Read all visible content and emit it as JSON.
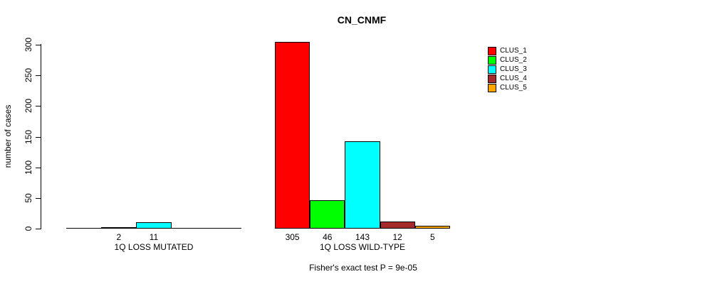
{
  "chart_data": {
    "type": "bar",
    "title": "CN_CNMF",
    "ylabel": "number of cases",
    "xlabel": "",
    "ylim": [
      0,
      300
    ],
    "y_ticks": [
      0,
      50,
      100,
      150,
      200,
      250,
      300
    ],
    "grid": false,
    "legend_position": "right-outside",
    "categories": [
      "1Q LOSS MUTATED",
      "1Q LOSS WILD-TYPE"
    ],
    "series": [
      {
        "name": "CLUS_1",
        "color": "#FF0000",
        "values": [
          0,
          305
        ]
      },
      {
        "name": "CLUS_2",
        "color": "#00FF00",
        "values": [
          2,
          46
        ]
      },
      {
        "name": "CLUS_3",
        "color": "#00FFFF",
        "values": [
          11,
          143
        ]
      },
      {
        "name": "CLUS_4",
        "color": "#A52A2A",
        "values": [
          0,
          12
        ]
      },
      {
        "name": "CLUS_5",
        "color": "#FFA500",
        "values": [
          0,
          5
        ]
      }
    ],
    "bar_value_labels": [
      "2",
      "11",
      "305",
      "46",
      "143",
      "12",
      "5"
    ],
    "zero_bars_drawn_as_flat_line": true,
    "annotation": "Fisher's exact test P = 9e-05"
  }
}
